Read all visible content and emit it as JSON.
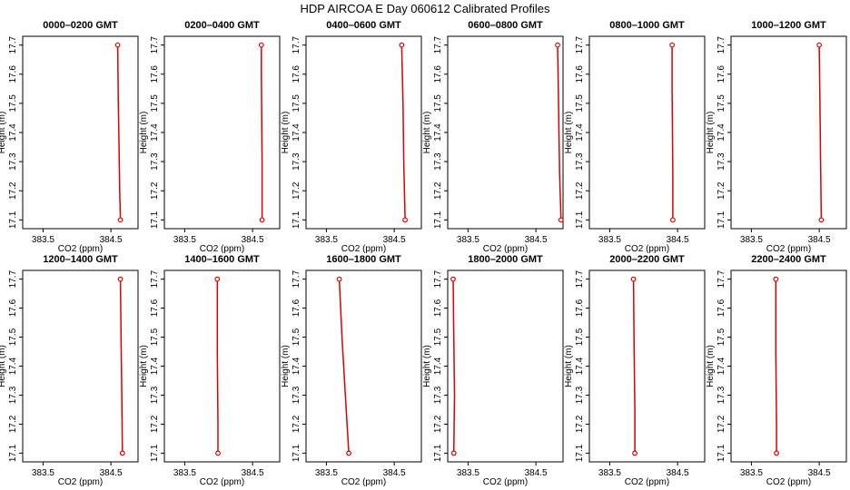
{
  "title": "HDP AIRCOA E  Day 060612  Calibrated Profiles",
  "colors": {
    "series": "#dd0000",
    "axis": "#000000",
    "background": "#ffffff"
  },
  "chart_data": [
    {
      "type": "line",
      "title": "0000–0200 GMT",
      "xlabel": "CO2 (ppm)",
      "ylabel": "Height (m)",
      "xlim": [
        383.2,
        384.9
      ],
      "ylim": [
        17.07,
        17.73
      ],
      "xticks": [
        383.5,
        384.5
      ],
      "xtick_labels": [
        "383.5",
        "384.5"
      ],
      "yticks": [
        17.1,
        17.2,
        17.3,
        17.4,
        17.5,
        17.6,
        17.7
      ],
      "ytick_labels": [
        "17.1",
        "17.2",
        "17.3",
        "17.4",
        "17.5",
        "17.6",
        "17.7"
      ],
      "grid": false,
      "x": [
        384.6,
        384.61,
        384.62,
        384.63,
        384.64
      ],
      "y": [
        17.7,
        17.5,
        17.35,
        17.2,
        17.1
      ]
    },
    {
      "type": "line",
      "title": "0200–0400 GMT",
      "xlabel": "CO2 (ppm)",
      "ylabel": "Height (m)",
      "xlim": [
        383.2,
        384.9
      ],
      "ylim": [
        17.07,
        17.73
      ],
      "xticks": [
        383.5,
        384.5
      ],
      "xtick_labels": [
        "383.5",
        "384.5"
      ],
      "yticks": [
        17.1,
        17.2,
        17.3,
        17.4,
        17.5,
        17.6,
        17.7
      ],
      "ytick_labels": [
        "17.1",
        "17.2",
        "17.3",
        "17.4",
        "17.5",
        "17.6",
        "17.7"
      ],
      "grid": false,
      "x": [
        384.63,
        384.63,
        384.64,
        384.64
      ],
      "y": [
        17.7,
        17.6,
        17.3,
        17.1
      ]
    },
    {
      "type": "line",
      "title": "0400–0600 GMT",
      "xlabel": "CO2 (ppm)",
      "ylabel": "Height (m)",
      "xlim": [
        383.2,
        384.9
      ],
      "ylim": [
        17.07,
        17.73
      ],
      "xticks": [
        383.5,
        384.5
      ],
      "xtick_labels": [
        "383.5",
        "384.5"
      ],
      "yticks": [
        17.1,
        17.2,
        17.3,
        17.4,
        17.5,
        17.6,
        17.7
      ],
      "ytick_labels": [
        "17.1",
        "17.2",
        "17.3",
        "17.4",
        "17.5",
        "17.6",
        "17.7"
      ],
      "grid": false,
      "x": [
        384.61,
        384.63,
        384.64,
        384.66
      ],
      "y": [
        17.7,
        17.5,
        17.3,
        17.1
      ]
    },
    {
      "type": "line",
      "title": "0600–0800 GMT",
      "xlabel": "CO2 (ppm)",
      "ylabel": "Height (m)",
      "xlim": [
        383.2,
        384.9
      ],
      "ylim": [
        17.07,
        17.73
      ],
      "xticks": [
        383.5,
        384.5
      ],
      "xtick_labels": [
        "383.5",
        "384.5"
      ],
      "yticks": [
        17.1,
        17.2,
        17.3,
        17.4,
        17.5,
        17.6,
        17.7
      ],
      "ytick_labels": [
        "17.1",
        "17.2",
        "17.3",
        "17.4",
        "17.5",
        "17.6",
        "17.7"
      ],
      "grid": false,
      "x": [
        384.82,
        384.83,
        384.84,
        384.85,
        384.87
      ],
      "y": [
        17.7,
        17.55,
        17.4,
        17.25,
        17.1
      ]
    },
    {
      "type": "line",
      "title": "0800–1000 GMT",
      "xlabel": "CO2 (ppm)",
      "ylabel": "Height (m)",
      "xlim": [
        383.2,
        384.9
      ],
      "ylim": [
        17.07,
        17.73
      ],
      "xticks": [
        383.5,
        384.5
      ],
      "xtick_labels": [
        "383.5",
        "384.5"
      ],
      "yticks": [
        17.1,
        17.2,
        17.3,
        17.4,
        17.5,
        17.6,
        17.7
      ],
      "ytick_labels": [
        "17.1",
        "17.2",
        "17.3",
        "17.4",
        "17.5",
        "17.6",
        "17.7"
      ],
      "grid": false,
      "x": [
        384.42,
        384.42,
        384.43,
        384.43
      ],
      "y": [
        17.7,
        17.55,
        17.25,
        17.1
      ]
    },
    {
      "type": "line",
      "title": "1000–1200 GMT",
      "xlabel": "CO2 (ppm)",
      "ylabel": "Height (m)",
      "xlim": [
        383.2,
        384.9
      ],
      "ylim": [
        17.07,
        17.73
      ],
      "xticks": [
        383.5,
        384.5
      ],
      "xtick_labels": [
        "383.5",
        "384.5"
      ],
      "yticks": [
        17.1,
        17.2,
        17.3,
        17.4,
        17.5,
        17.6,
        17.7
      ],
      "ytick_labels": [
        "17.1",
        "17.2",
        "17.3",
        "17.4",
        "17.5",
        "17.6",
        "17.7"
      ],
      "grid": false,
      "x": [
        384.5,
        384.51,
        384.52,
        384.53
      ],
      "y": [
        17.7,
        17.5,
        17.3,
        17.1
      ]
    },
    {
      "type": "line",
      "title": "1200–1400 GMT",
      "xlabel": "CO2 (ppm)",
      "ylabel": "Height (m)",
      "xlim": [
        383.2,
        384.9
      ],
      "ylim": [
        17.07,
        17.73
      ],
      "xticks": [
        383.5,
        384.5
      ],
      "xtick_labels": [
        "383.5",
        "384.5"
      ],
      "yticks": [
        17.1,
        17.2,
        17.3,
        17.4,
        17.5,
        17.6,
        17.7
      ],
      "ytick_labels": [
        "17.1",
        "17.2",
        "17.3",
        "17.4",
        "17.5",
        "17.6",
        "17.7"
      ],
      "grid": false,
      "x": [
        384.64,
        384.65,
        384.66,
        384.67
      ],
      "y": [
        17.7,
        17.5,
        17.3,
        17.1
      ]
    },
    {
      "type": "line",
      "title": "1400–1600 GMT",
      "xlabel": "CO2 (ppm)",
      "ylabel": "Height (m)",
      "xlim": [
        383.2,
        384.9
      ],
      "ylim": [
        17.07,
        17.73
      ],
      "xticks": [
        383.5,
        384.5
      ],
      "xtick_labels": [
        "383.5",
        "384.5"
      ],
      "yticks": [
        17.1,
        17.2,
        17.3,
        17.4,
        17.5,
        17.6,
        17.7
      ],
      "ytick_labels": [
        "17.1",
        "17.2",
        "17.3",
        "17.4",
        "17.5",
        "17.6",
        "17.7"
      ],
      "grid": false,
      "x": [
        383.98,
        383.98,
        383.99,
        383.99
      ],
      "y": [
        17.7,
        17.45,
        17.2,
        17.1
      ]
    },
    {
      "type": "line",
      "title": "1600–1800 GMT",
      "xlabel": "CO2 (ppm)",
      "ylabel": "Height (m)",
      "xlim": [
        383.2,
        384.9
      ],
      "ylim": [
        17.07,
        17.73
      ],
      "xticks": [
        383.5,
        384.5
      ],
      "xtick_labels": [
        "383.5",
        "384.5"
      ],
      "yticks": [
        17.1,
        17.2,
        17.3,
        17.4,
        17.5,
        17.6,
        17.7
      ],
      "ytick_labels": [
        "17.1",
        "17.2",
        "17.3",
        "17.4",
        "17.5",
        "17.6",
        "17.7"
      ],
      "grid": false,
      "x": [
        383.69,
        383.73,
        383.78,
        383.83
      ],
      "y": [
        17.7,
        17.5,
        17.3,
        17.1
      ]
    },
    {
      "type": "line",
      "title": "1800–2000 GMT",
      "xlabel": "CO2 (ppm)",
      "ylabel": "Height (m)",
      "xlim": [
        383.2,
        384.9
      ],
      "ylim": [
        17.07,
        17.73
      ],
      "xticks": [
        383.5,
        384.5
      ],
      "xtick_labels": [
        "383.5",
        "384.5"
      ],
      "yticks": [
        17.1,
        17.2,
        17.3,
        17.4,
        17.5,
        17.6,
        17.7
      ],
      "ytick_labels": [
        "17.1",
        "17.2",
        "17.3",
        "17.4",
        "17.5",
        "17.6",
        "17.7"
      ],
      "grid": false,
      "x": [
        383.28,
        383.29,
        383.3,
        383.29
      ],
      "y": [
        17.7,
        17.5,
        17.3,
        17.1
      ]
    },
    {
      "type": "line",
      "title": "2000–2200 GMT",
      "xlabel": "CO2 (ppm)",
      "ylabel": "Height (m)",
      "xlim": [
        383.2,
        384.9
      ],
      "ylim": [
        17.07,
        17.73
      ],
      "xticks": [
        383.5,
        384.5
      ],
      "xtick_labels": [
        "383.5",
        "384.5"
      ],
      "yticks": [
        17.1,
        17.2,
        17.3,
        17.4,
        17.5,
        17.6,
        17.7
      ],
      "ytick_labels": [
        "17.1",
        "17.2",
        "17.3",
        "17.4",
        "17.5",
        "17.6",
        "17.7"
      ],
      "grid": false,
      "x": [
        383.85,
        383.86,
        383.87,
        383.87
      ],
      "y": [
        17.7,
        17.45,
        17.25,
        17.1
      ]
    },
    {
      "type": "line",
      "title": "2200–2400 GMT",
      "xlabel": "CO2 (ppm)",
      "ylabel": "Height (m)",
      "xlim": [
        383.2,
        384.9
      ],
      "ylim": [
        17.07,
        17.73
      ],
      "xticks": [
        383.5,
        384.5
      ],
      "xtick_labels": [
        "383.5",
        "384.5"
      ],
      "yticks": [
        17.1,
        17.2,
        17.3,
        17.4,
        17.5,
        17.6,
        17.7
      ],
      "ytick_labels": [
        "17.1",
        "17.2",
        "17.3",
        "17.4",
        "17.5",
        "17.6",
        "17.7"
      ],
      "grid": false,
      "x": [
        383.86,
        383.86,
        383.87,
        383.87
      ],
      "y": [
        17.7,
        17.45,
        17.2,
        17.1
      ]
    }
  ]
}
